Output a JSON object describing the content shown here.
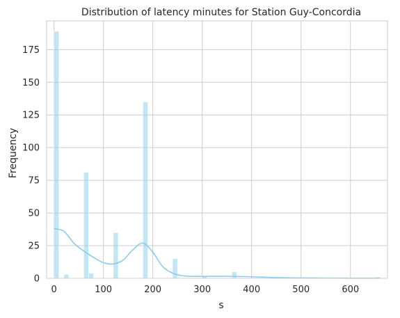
{
  "chart_data": {
    "type": "histogram",
    "title": "Distribution of latency minutes for Station Guy-Concordia",
    "xlabel": "s",
    "ylabel": "Frequency",
    "xlim": [
      -15,
      675
    ],
    "ylim": [
      0,
      197
    ],
    "xticks": [
      0,
      100,
      200,
      300,
      400,
      500,
      600
    ],
    "yticks": [
      0,
      25,
      50,
      75,
      100,
      125,
      150,
      175
    ],
    "grid": true,
    "bar_color": "#87ceeb",
    "kde_color": "#87ceeb",
    "bins": [
      {
        "x0": 0,
        "x1": 10,
        "count": 189
      },
      {
        "x0": 10,
        "x1": 20,
        "count": 0
      },
      {
        "x0": 20,
        "x1": 30,
        "count": 3
      },
      {
        "x0": 60,
        "x1": 70,
        "count": 81
      },
      {
        "x0": 70,
        "x1": 80,
        "count": 4
      },
      {
        "x0": 120,
        "x1": 130,
        "count": 35
      },
      {
        "x0": 180,
        "x1": 190,
        "count": 135
      },
      {
        "x0": 240,
        "x1": 250,
        "count": 15
      },
      {
        "x0": 300,
        "x1": 310,
        "count": 2
      },
      {
        "x0": 360,
        "x1": 370,
        "count": 5
      },
      {
        "x0": 650,
        "x1": 660,
        "count": 1
      }
    ],
    "kde": {
      "x": [
        0,
        20,
        40,
        60,
        80,
        100,
        120,
        140,
        160,
        180,
        200,
        220,
        240,
        260,
        280,
        300,
        350,
        400,
        450,
        500,
        550,
        600,
        660
      ],
      "y": [
        38,
        36,
        27,
        21,
        16,
        12,
        11,
        14,
        22,
        27,
        20,
        9,
        4,
        2,
        1.5,
        1.5,
        1.6,
        1.2,
        0.6,
        0.3,
        0.2,
        0.1,
        0.1
      ]
    }
  }
}
